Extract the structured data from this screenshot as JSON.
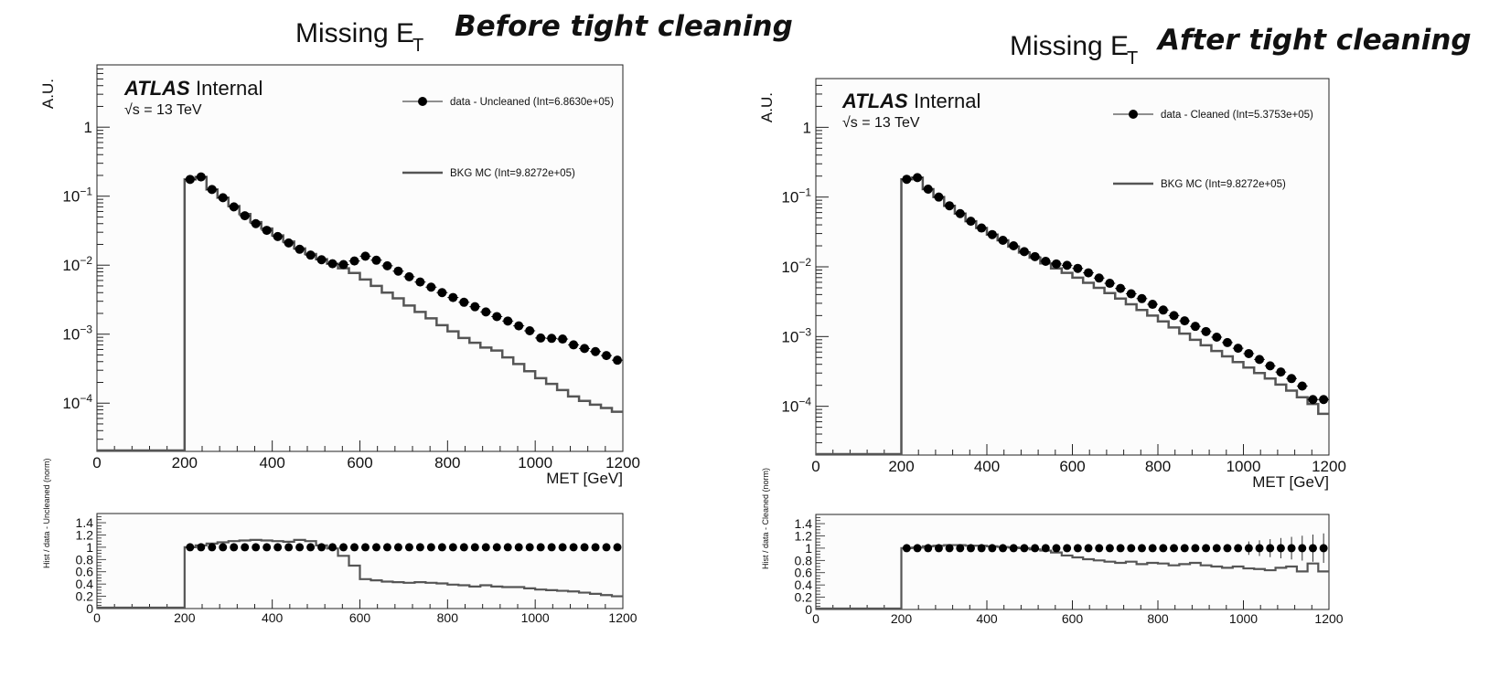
{
  "chart_data": [
    {
      "type": "line",
      "title": "Missing E",
      "title_subscript": "T",
      "subtitle": "Before tight cleaning",
      "atlas_label": "ATLAS",
      "atlas_status": "Internal",
      "energy_label": "√s = 13 TeV",
      "xlabel": "MET [GeV]",
      "ylabel": "A.U.",
      "xlim": [
        0,
        1200
      ],
      "ylim": [
        2e-05,
        8
      ],
      "yscale": "log",
      "x_ticks": [
        "0",
        "200",
        "400",
        "600",
        "800",
        "1000",
        "1200"
      ],
      "y_ticks": [
        {
          "base": "",
          "exp": "",
          "text": "1",
          "value": 1
        },
        {
          "base": "10",
          "exp": "−1",
          "value": 0.1
        },
        {
          "base": "10",
          "exp": "−2",
          "value": 0.01
        },
        {
          "base": "10",
          "exp": "−3",
          "value": 0.001
        },
        {
          "base": "10",
          "exp": "−4",
          "value": 0.0001
        }
      ],
      "legend": [
        {
          "name": "data - Uncleaned (Int=6.8630e+05)",
          "style": "marker"
        },
        {
          "name": "BKG MC (Int=9.8272e+05)",
          "style": "line"
        }
      ],
      "bin_edges": [
        0,
        200,
        1200
      ],
      "bin_width": 25,
      "data_x": [
        212.5,
        237.5,
        262.5,
        287.5,
        312.5,
        337.5,
        362.5,
        387.5,
        412.5,
        437.5,
        462.5,
        487.5,
        512.5,
        537.5,
        562.5,
        587.5,
        612.5,
        637.5,
        662.5,
        687.5,
        712.5,
        737.5,
        762.5,
        787.5,
        812.5,
        837.5,
        862.5,
        887.5,
        912.5,
        937.5,
        962.5,
        987.5,
        1012.5,
        1037.5,
        1062.5,
        1087.5,
        1112.5,
        1137.5,
        1162.5,
        1187.5
      ],
      "data_y": [
        0.175,
        0.19,
        0.125,
        0.095,
        0.07,
        0.052,
        0.04,
        0.032,
        0.026,
        0.021,
        0.017,
        0.014,
        0.012,
        0.0105,
        0.0102,
        0.0115,
        0.0135,
        0.0118,
        0.0098,
        0.0082,
        0.0068,
        0.0057,
        0.0048,
        0.004,
        0.0034,
        0.0029,
        0.0025,
        0.0021,
        0.0018,
        0.00155,
        0.00132,
        0.00112,
        0.00088,
        0.00087,
        0.00085,
        0.0007,
        0.00062,
        0.00056,
        0.00049,
        0.00042
      ],
      "mc_y": [
        0.175,
        0.19,
        0.125,
        0.095,
        0.072,
        0.055,
        0.042,
        0.034,
        0.027,
        0.022,
        0.0175,
        0.0145,
        0.0122,
        0.0105,
        0.009,
        0.0077,
        0.0062,
        0.005,
        0.004,
        0.0033,
        0.0026,
        0.0021,
        0.0017,
        0.00135,
        0.0011,
        0.00088,
        0.00075,
        0.00064,
        0.00058,
        0.00046,
        0.00037,
        0.00029,
        0.00023,
        0.00019,
        0.000155,
        0.000125,
        0.000108,
        9.5e-05,
        8.5e-05,
        7.5e-05
      ],
      "ratio": {
        "ylabel": "Hist / data - Uncleaned (norm)",
        "ylim": [
          0,
          1.55
        ],
        "y_ticks": [
          "0",
          "0.2",
          "0.4",
          "0.6",
          "0.8",
          "1",
          "1.2",
          "1.4"
        ],
        "x_ticks": [
          "0",
          "200",
          "400",
          "600",
          "800",
          "1000",
          "1200"
        ],
        "data_ratio": 1.0,
        "mc_ratio": [
          1.0,
          1.03,
          1.06,
          1.08,
          1.1,
          1.11,
          1.12,
          1.11,
          1.1,
          1.09,
          1.12,
          1.1,
          1.03,
          0.98,
          0.86,
          0.7,
          0.48,
          0.46,
          0.44,
          0.43,
          0.42,
          0.43,
          0.42,
          0.41,
          0.39,
          0.38,
          0.36,
          0.38,
          0.36,
          0.35,
          0.35,
          0.33,
          0.31,
          0.3,
          0.29,
          0.28,
          0.26,
          0.24,
          0.22,
          0.2
        ]
      }
    },
    {
      "type": "line",
      "title": "Missing E",
      "title_subscript": "T",
      "subtitle": "After tight cleaning",
      "atlas_label": "ATLAS",
      "atlas_status": "Internal",
      "energy_label": "√s = 13 TeV",
      "xlabel": "MET [GeV]",
      "ylabel": "A.U.",
      "xlim": [
        0,
        1200
      ],
      "ylim": [
        2e-05,
        5
      ],
      "yscale": "log",
      "x_ticks": [
        "0",
        "200",
        "400",
        "600",
        "800",
        "1000",
        "1200"
      ],
      "y_ticks": [
        {
          "base": "",
          "exp": "",
          "text": "1",
          "value": 1
        },
        {
          "base": "10",
          "exp": "−1",
          "value": 0.1
        },
        {
          "base": "10",
          "exp": "−2",
          "value": 0.01
        },
        {
          "base": "10",
          "exp": "−3",
          "value": 0.001
        },
        {
          "base": "10",
          "exp": "−4",
          "value": 0.0001
        }
      ],
      "legend": [
        {
          "name": "data - Cleaned (Int=5.3753e+05)",
          "style": "marker"
        },
        {
          "name": "BKG MC (Int=9.8272e+05)",
          "style": "line"
        }
      ],
      "bin_edges": [
        0,
        200,
        1200
      ],
      "bin_width": 25,
      "data_x": [
        212.5,
        237.5,
        262.5,
        287.5,
        312.5,
        337.5,
        362.5,
        387.5,
        412.5,
        437.5,
        462.5,
        487.5,
        512.5,
        537.5,
        562.5,
        587.5,
        612.5,
        637.5,
        662.5,
        687.5,
        712.5,
        737.5,
        762.5,
        787.5,
        812.5,
        837.5,
        862.5,
        887.5,
        912.5,
        937.5,
        962.5,
        987.5,
        1012.5,
        1037.5,
        1062.5,
        1087.5,
        1112.5,
        1137.5,
        1162.5,
        1187.5
      ],
      "data_y": [
        0.18,
        0.19,
        0.13,
        0.1,
        0.075,
        0.058,
        0.045,
        0.036,
        0.029,
        0.024,
        0.02,
        0.0165,
        0.014,
        0.012,
        0.011,
        0.0105,
        0.0095,
        0.0082,
        0.0069,
        0.0058,
        0.0049,
        0.0041,
        0.0035,
        0.0029,
        0.0024,
        0.002,
        0.00168,
        0.0014,
        0.00118,
        0.00098,
        0.00082,
        0.00068,
        0.00057,
        0.00047,
        0.00038,
        0.00031,
        0.00025,
        0.000195,
        0.000125,
        0.000125
      ],
      "mc_y": [
        0.18,
        0.19,
        0.13,
        0.1,
        0.075,
        0.058,
        0.045,
        0.036,
        0.029,
        0.024,
        0.0195,
        0.016,
        0.0135,
        0.0112,
        0.0095,
        0.0082,
        0.007,
        0.0059,
        0.005,
        0.0042,
        0.0035,
        0.0029,
        0.0024,
        0.002,
        0.00165,
        0.00135,
        0.0011,
        0.0009,
        0.00075,
        0.00062,
        0.00052,
        0.00043,
        0.00036,
        0.0003,
        0.00025,
        0.000205,
        0.000168,
        0.000135,
        0.000108,
        7.8e-05
      ],
      "ratio": {
        "ylabel": "Hist / data - Cleaned (norm)",
        "ylim": [
          0,
          1.55
        ],
        "y_ticks": [
          "0",
          "0.2",
          "0.4",
          "0.6",
          "0.8",
          "1",
          "1.2",
          "1.4"
        ],
        "x_ticks": [
          "0",
          "200",
          "400",
          "600",
          "800",
          "1000",
          "1200"
        ],
        "data_ratio": 1.0,
        "mc_ratio": [
          1.0,
          1.01,
          1.03,
          1.04,
          1.05,
          1.05,
          1.04,
          1.04,
          1.03,
          1.02,
          1.01,
          1.0,
          0.98,
          0.96,
          0.93,
          0.88,
          0.85,
          0.82,
          0.8,
          0.78,
          0.76,
          0.78,
          0.74,
          0.76,
          0.75,
          0.72,
          0.74,
          0.76,
          0.72,
          0.7,
          0.68,
          0.7,
          0.67,
          0.66,
          0.64,
          0.68,
          0.7,
          0.62,
          0.75,
          0.62
        ],
        "error_bars_from_x": 1000
      }
    }
  ]
}
